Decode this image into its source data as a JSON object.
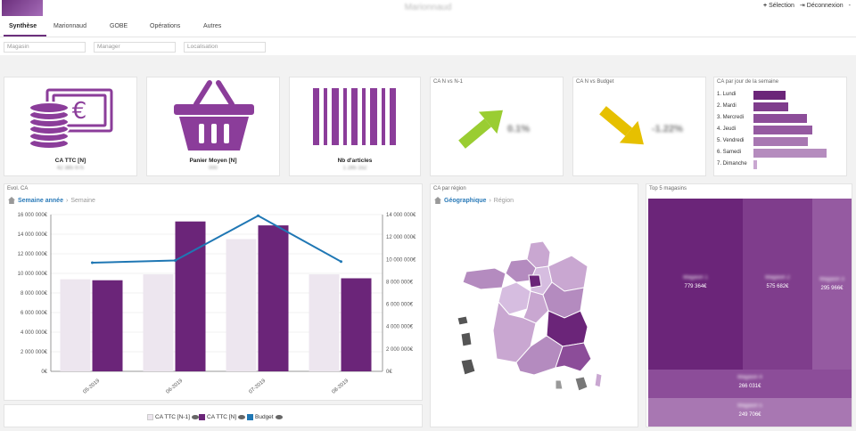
{
  "header": {
    "brand": "Marionnaud",
    "selection_label": "Sélection",
    "logout_label": "Déconnexion",
    "menu_label": "-"
  },
  "tabs": [
    {
      "label": "Synthèse",
      "active": true
    },
    {
      "label": "Marionnaud"
    },
    {
      "label": "GOBE"
    },
    {
      "label": "Opérations"
    },
    {
      "label": "Autres"
    }
  ],
  "filters": [
    {
      "placeholder": "Magasin"
    },
    {
      "placeholder": "Manager"
    },
    {
      "placeholder": "Localisation"
    }
  ],
  "kpis": [
    {
      "label": "CA TTC [N]",
      "value": "42 385 975",
      "icon": "money-icon"
    },
    {
      "label": "Panier Moyen [N]",
      "value": "000",
      "icon": "basket-icon"
    },
    {
      "label": "Nb d'articles",
      "value": "1 285 152",
      "icon": "barcode-icon"
    }
  ],
  "trend_cards": [
    {
      "title": "CA N vs N-1",
      "value": "0.1%",
      "direction": "up",
      "color": "#9acd32"
    },
    {
      "title": "CA N vs Budget",
      "value": "-1.22%",
      "direction": "down",
      "color": "#e6c000"
    }
  ],
  "weekdays": {
    "title": "CA par jour de la semaine",
    "items": [
      {
        "label": "1. Lundi",
        "value": 48
      },
      {
        "label": "2. Mardi",
        "value": 52
      },
      {
        "label": "3. Mercredi",
        "value": 80
      },
      {
        "label": "4. Jeudi",
        "value": 88
      },
      {
        "label": "5. Vendredi",
        "value": 82
      },
      {
        "label": "6. Samedi",
        "value": 110
      },
      {
        "label": "7. Dimanche",
        "value": 6
      }
    ]
  },
  "evol": {
    "title": "Evol. CA",
    "breadcrumb_active": "Semaine année",
    "breadcrumb_next": "Semaine"
  },
  "chart_data": {
    "type": "bar",
    "title": "Evol. CA",
    "categories": [
      "05-2019",
      "06-2019",
      "07-2019",
      "08-2019"
    ],
    "y_ticks_left": [
      "16 000 000€",
      "14 000 000€",
      "12 000 000€",
      "10 000 000€",
      "8 000 000€",
      "6 000 000€",
      "4 000 000€",
      "2 000 000€",
      "0€"
    ],
    "y_ticks_right": [
      "14 000 000€",
      "12 000 000€",
      "10 000 000€",
      "8 000 000€",
      "6 000 000€",
      "4 000 000€",
      "2 000 000€",
      "0€"
    ],
    "ylim_left": [
      0,
      16000000
    ],
    "ylim_right": [
      0,
      14000000
    ],
    "series": [
      {
        "name": "CA TTC [N-1]",
        "type": "bar",
        "color": "#ede6ef",
        "values": [
          9400000,
          9900000,
          13500000,
          9900000
        ]
      },
      {
        "name": "CA TTC [N]",
        "type": "bar",
        "color": "#6b2579",
        "values": [
          9300000,
          15300000,
          14900000,
          9500000
        ]
      },
      {
        "name": "Budget",
        "type": "line",
        "color": "#1f77b4",
        "axis": "right",
        "values": [
          9700000,
          9900000,
          13900000,
          9800000
        ]
      }
    ]
  },
  "region": {
    "title": "CA par région",
    "breadcrumb_active": "Géographique",
    "breadcrumb_next": "Région"
  },
  "top5": {
    "title": "Top 5 magasins",
    "tiles": [
      {
        "name": "Magasin 1",
        "value": "779 364€",
        "color": "#6b2579"
      },
      {
        "name": "Magasin 2",
        "value": "575 682€",
        "color": "#7f3d8c"
      },
      {
        "name": "Magasin 3",
        "value": "295 966€",
        "color": "#955aa1"
      },
      {
        "name": "Magasin 4",
        "value": "266 031€",
        "color": "#8c4d99"
      },
      {
        "name": "Magasin 5",
        "value": "249 706€",
        "color": "#a877b2"
      }
    ]
  }
}
